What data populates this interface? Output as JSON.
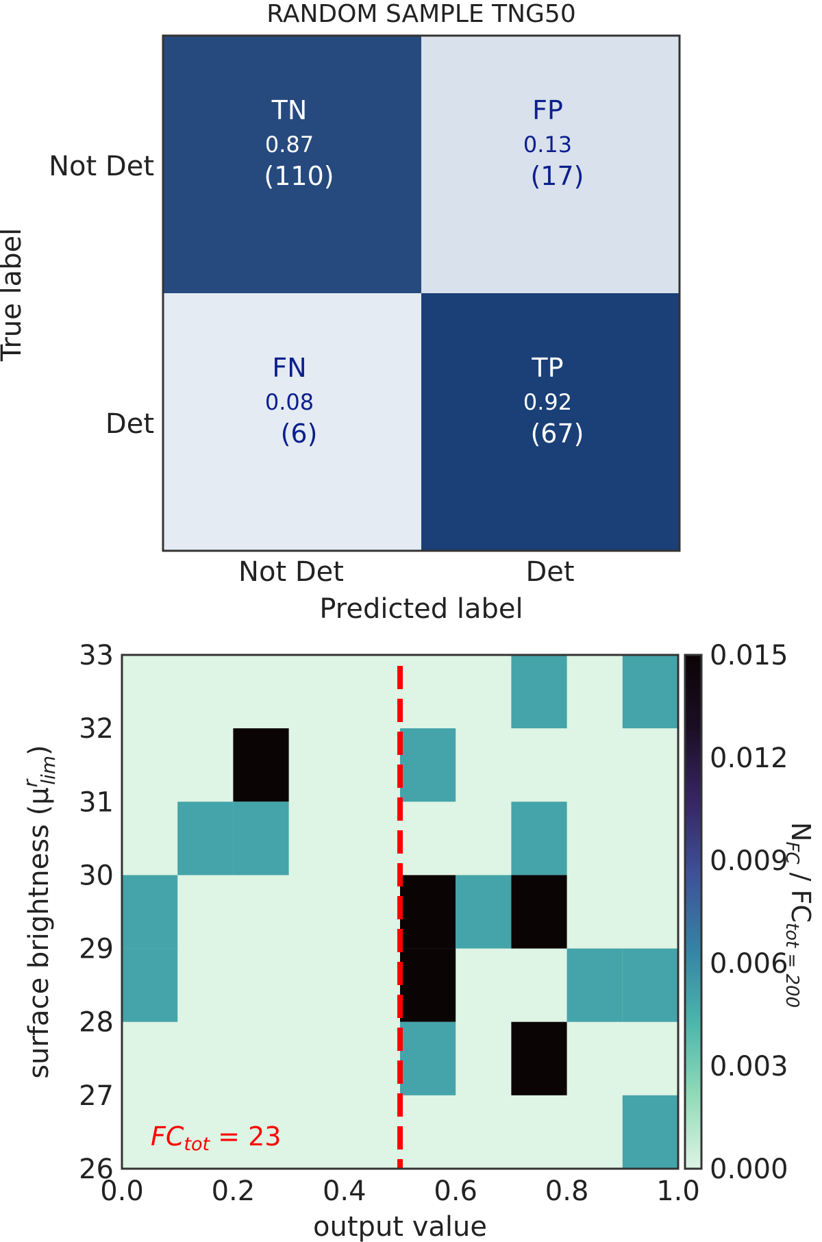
{
  "chart_data": [
    {
      "type": "heatmap",
      "subtype": "confusion-matrix",
      "title": "RANDOM SAMPLE TNG50",
      "xlabel": "Predicted label",
      "ylabel": "True label",
      "x_categories": [
        "Not Det",
        "Det"
      ],
      "y_categories": [
        "Not Det",
        "Det"
      ],
      "colormap": "Blues",
      "cells": [
        {
          "row": 0,
          "col": 0,
          "label": "TN",
          "fraction": "0.87",
          "count": "(110)",
          "value": 0.87
        },
        {
          "row": 0,
          "col": 1,
          "label": "FP",
          "fraction": "0.13",
          "count": "(17)",
          "value": 0.13
        },
        {
          "row": 1,
          "col": 0,
          "label": "FN",
          "fraction": "0.08",
          "count": "(6)",
          "value": 0.08
        },
        {
          "row": 1,
          "col": 1,
          "label": "TP",
          "fraction": "0.92",
          "count": "(67)",
          "value": 0.92
        }
      ],
      "colors": {
        "dark": "#083d7f",
        "darker": "#08306b",
        "light": "#eaf3fc",
        "lighter": "#f6faff",
        "text_on_dark": "#ffffff",
        "text_on_light": "#0b1f8c"
      }
    },
    {
      "type": "heatmap",
      "xlabel": "output value",
      "ylabel": "surface brightness (μ",
      "ylabel_sup": "r",
      "ylabel_sub": "lim",
      "ylabel_close": ")",
      "xlim": [
        0.0,
        1.0
      ],
      "ylim": [
        26,
        33
      ],
      "x_bin_width": 0.1,
      "y_bin_height": 1,
      "xticks": [
        "0.0",
        "0.2",
        "0.4",
        "0.6",
        "0.8",
        "1.0"
      ],
      "yticks": [
        "26",
        "27",
        "28",
        "29",
        "30",
        "31",
        "32",
        "33"
      ],
      "threshold_line": {
        "x": 0.5,
        "color": "#ff0000",
        "style": "dashed"
      },
      "annotation": {
        "prefix": "FC",
        "sub": "tot",
        "suffix": " = 23",
        "color": "#ff0000"
      },
      "cells": [
        {
          "x": 0.7,
          "y": 32,
          "value": 0.005
        },
        {
          "x": 0.9,
          "y": 32,
          "value": 0.005
        },
        {
          "x": 0.2,
          "y": 31,
          "value": 0.015
        },
        {
          "x": 0.5,
          "y": 31,
          "value": 0.005
        },
        {
          "x": 0.1,
          "y": 30,
          "value": 0.005
        },
        {
          "x": 0.2,
          "y": 30,
          "value": 0.005
        },
        {
          "x": 0.7,
          "y": 30,
          "value": 0.005
        },
        {
          "x": 0.0,
          "y": 29,
          "value": 0.005
        },
        {
          "x": 0.5,
          "y": 29,
          "value": 0.015
        },
        {
          "x": 0.6,
          "y": 29,
          "value": 0.005
        },
        {
          "x": 0.7,
          "y": 29,
          "value": 0.015
        },
        {
          "x": 0.0,
          "y": 28,
          "value": 0.005
        },
        {
          "x": 0.5,
          "y": 28,
          "value": 0.015
        },
        {
          "x": 0.8,
          "y": 28,
          "value": 0.005
        },
        {
          "x": 0.9,
          "y": 28,
          "value": 0.005
        },
        {
          "x": 0.5,
          "y": 27,
          "value": 0.005
        },
        {
          "x": 0.7,
          "y": 27,
          "value": 0.015
        },
        {
          "x": 0.9,
          "y": 26,
          "value": 0.005
        }
      ],
      "colorbar": {
        "label": "N",
        "label_sub1": "FC",
        "label_mid": " / FC",
        "label_sub2": "tot = 200",
        "range": [
          0.0,
          0.015
        ],
        "ticks": [
          "0.000",
          "0.003",
          "0.006",
          "0.009",
          "0.012",
          "0.015"
        ],
        "colormap": "mako_r",
        "colors": [
          "#def4e4",
          "#90dbb8",
          "#4cb5ab",
          "#3582a5",
          "#3e5299",
          "#372664",
          "#1b0e24",
          "#0b0405"
        ]
      }
    }
  ]
}
